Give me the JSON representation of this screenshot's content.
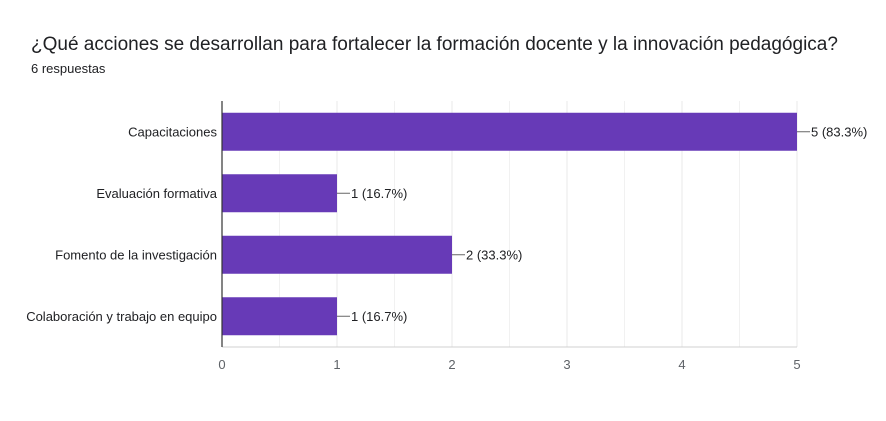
{
  "page": {
    "title": "¿Qué acciones se desarrollan para fortalecer la formación docente y la innovación pedagógica?",
    "subtitle": "6 respuestas"
  },
  "chart_data": {
    "type": "bar",
    "orientation": "horizontal",
    "categories": [
      "Capacitaciones",
      "Evaluación formativa",
      "Fomento de la investigación",
      "Colaboración y trabajo en equipo"
    ],
    "values": [
      5,
      1,
      2,
      1
    ],
    "data_labels": [
      "5 (83.3%)",
      "1 (16.7%)",
      "2 (33.3%)",
      "1 (16.7%)"
    ],
    "xlim": [
      0,
      5
    ],
    "xticks": [
      "0",
      "1",
      "2",
      "3",
      "4",
      "5"
    ],
    "grid": true,
    "bar_color": "#673ab7",
    "grid_color": "#e8e8e8",
    "axis_color": "#333333"
  }
}
